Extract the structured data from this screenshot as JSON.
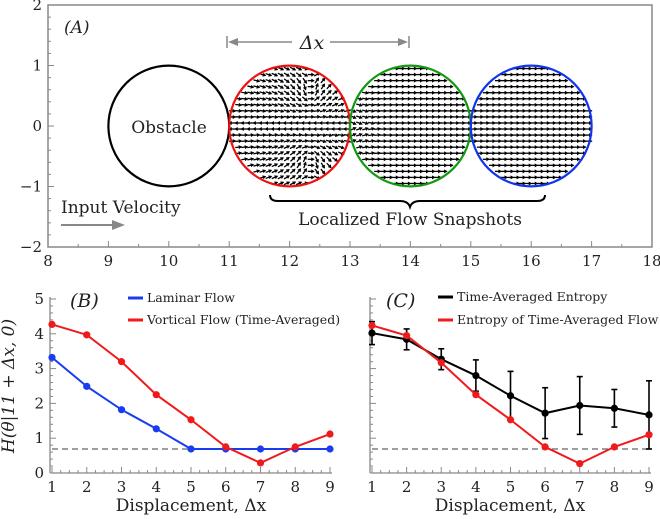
{
  "chart_data": [
    {
      "panel": "(A)",
      "type": "scatter",
      "title": "",
      "xlim": [
        8,
        18
      ],
      "ylim": [
        -2,
        2
      ],
      "xticks": [
        "8",
        "9",
        "10",
        "11",
        "12",
        "13",
        "14",
        "15",
        "16",
        "17",
        "18"
      ],
      "yticks": [
        "−2",
        "−1",
        "0",
        "1",
        "2"
      ],
      "annotations": {
        "obstacle": "Obstacle",
        "input_velocity": "Input Velocity",
        "delta_x": "Δx",
        "snapshots": "Localized Flow Snapshots"
      },
      "circles": [
        {
          "name": "Obstacle",
          "x": 10,
          "y": 0,
          "r": 1,
          "color": "#000000"
        },
        {
          "name": "Vortical snapshot",
          "x": 12,
          "y": 0,
          "r": 1,
          "color": "#ee1111"
        },
        {
          "name": "Mixed snapshot",
          "x": 14,
          "y": 0,
          "r": 1,
          "color": "#119911"
        },
        {
          "name": "Laminar snapshot",
          "x": 16,
          "y": 0,
          "r": 1,
          "color": "#1133ee"
        }
      ],
      "delta_x_range": [
        11,
        14
      ]
    },
    {
      "panel": "(B)",
      "type": "line",
      "xlabel": "Displacement, Δx",
      "ylabel": "H(θ|11 + Δx, 0)",
      "xlim": [
        1,
        9
      ],
      "ylim": [
        0,
        5
      ],
      "xticks": [
        "1",
        "2",
        "3",
        "4",
        "5",
        "6",
        "7",
        "8",
        "9"
      ],
      "yticks": [
        "0",
        "1",
        "2",
        "3",
        "4",
        "5"
      ],
      "x": [
        1,
        2,
        3,
        4,
        5,
        6,
        7,
        8,
        9
      ],
      "reference_line": 0.69,
      "legend_position": "top-right",
      "series": [
        {
          "name": "Laminar Flow",
          "color": "#1a3cf0",
          "values": [
            3.32,
            2.49,
            1.82,
            1.27,
            0.69,
            0.69,
            0.69,
            0.69,
            0.69
          ]
        },
        {
          "name": "Vortical Flow (Time-Averaged)",
          "color": "#f01a1a",
          "values": [
            4.27,
            3.97,
            3.2,
            2.25,
            1.53,
            0.75,
            0.29,
            0.75,
            1.12
          ]
        }
      ]
    },
    {
      "panel": "(C)",
      "type": "line",
      "xlabel": "Displacement, Δx",
      "ylabel": "",
      "xlim": [
        1,
        9
      ],
      "ylim": [
        0,
        5
      ],
      "xticks": [
        "1",
        "2",
        "3",
        "4",
        "5",
        "6",
        "7",
        "8",
        "9"
      ],
      "x": [
        1,
        2,
        3,
        4,
        5,
        6,
        7,
        8,
        9
      ],
      "reference_line": 0.69,
      "legend_position": "top-right",
      "series": [
        {
          "name": "Time-Averaged Entropy",
          "color": "#000000",
          "values": [
            4.02,
            3.84,
            3.27,
            2.8,
            2.22,
            1.72,
            1.94,
            1.86,
            1.67
          ],
          "error": [
            0.33,
            0.3,
            0.3,
            0.45,
            0.7,
            0.73,
            0.83,
            0.54,
            0.98
          ]
        },
        {
          "name": "Entropy of Time-Averaged Flow",
          "color": "#f01a1a",
          "values": [
            4.24,
            3.95,
            3.17,
            2.25,
            1.53,
            0.75,
            0.27,
            0.75,
            1.1
          ]
        }
      ]
    }
  ]
}
